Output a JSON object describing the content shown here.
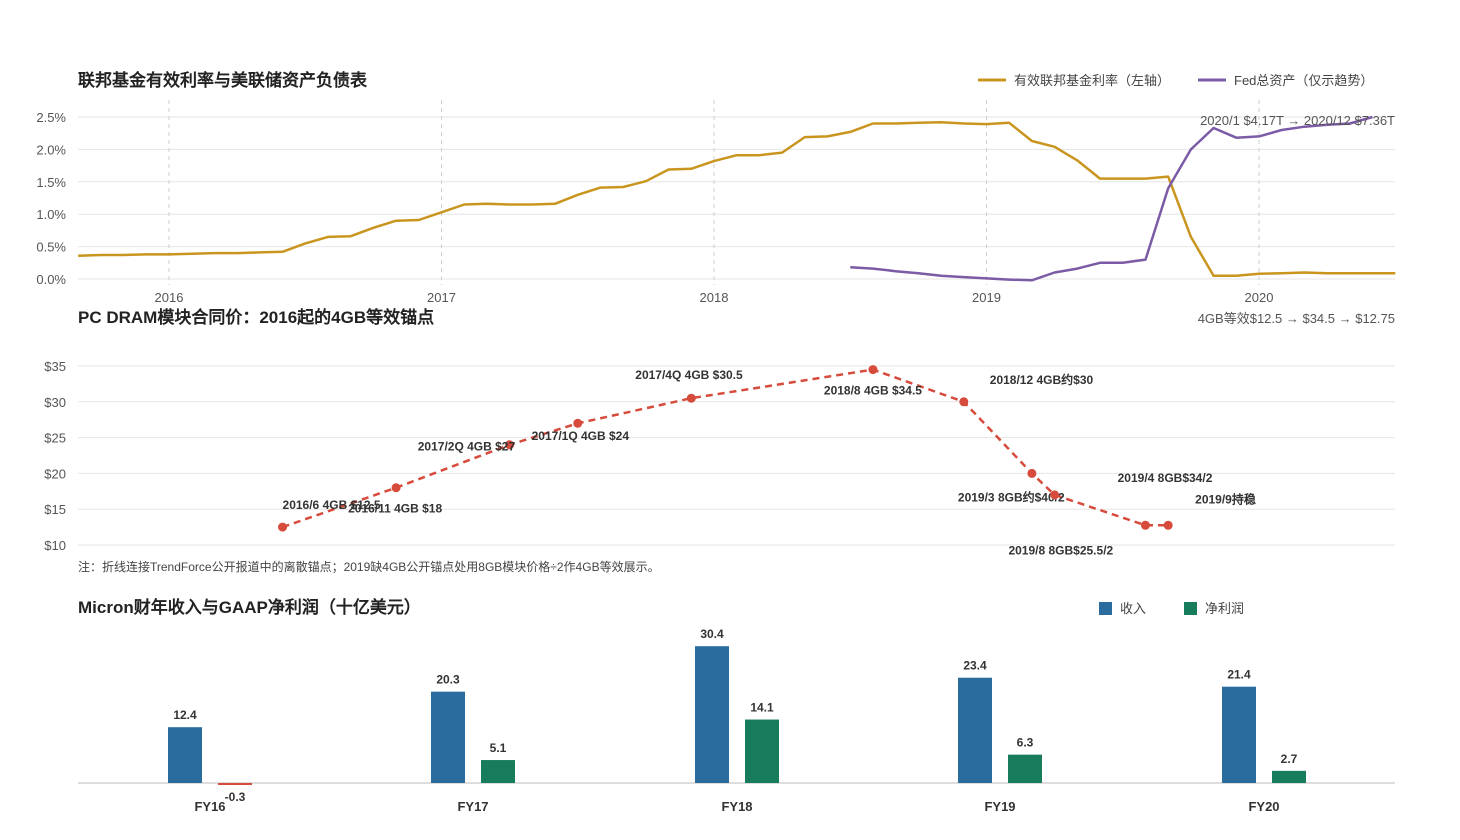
{
  "chart_data": [
    {
      "type": "line",
      "title": "联邦基金有效利率与美联储资产负债表",
      "legend_placement": "top-right",
      "x_ticks": [
        "2016",
        "2017",
        "2018",
        "2019",
        "2020"
      ],
      "y_ticks": [
        "0.0%",
        "0.5%",
        "1.0%",
        "1.5%",
        "2.0%",
        "2.5%"
      ],
      "ylim": [
        0,
        2.5
      ],
      "grid": true,
      "annotation": "2020/1 $4.17T → 2020/12 $7.36T",
      "series": [
        {
          "name": "有效联邦基金利率（左轴）",
          "color": "#c9951e",
          "points": [
            [
              "2015-09",
              0.36
            ],
            [
              "2015-10",
              0.37
            ],
            [
              "2015-11",
              0.37
            ],
            [
              "2015-12",
              0.38
            ],
            [
              "2016-01",
              0.38
            ],
            [
              "2016-02",
              0.39
            ],
            [
              "2016-03",
              0.4
            ],
            [
              "2016-04",
              0.4
            ],
            [
              "2016-05",
              0.41
            ],
            [
              "2016-06",
              0.42
            ],
            [
              "2016-07",
              0.55
            ],
            [
              "2016-08",
              0.65
            ],
            [
              "2016-09",
              0.66
            ],
            [
              "2016-10",
              0.79
            ],
            [
              "2016-11",
              0.9
            ],
            [
              "2016-12",
              0.91
            ],
            [
              "2017-01",
              1.03
            ],
            [
              "2017-02",
              1.15
            ],
            [
              "2017-03",
              1.16
            ],
            [
              "2017-04",
              1.15
            ],
            [
              "2017-05",
              1.15
            ],
            [
              "2017-06",
              1.16
            ],
            [
              "2017-07",
              1.3
            ],
            [
              "2017-08",
              1.41
            ],
            [
              "2017-09",
              1.42
            ],
            [
              "2017-10",
              1.51
            ],
            [
              "2017-11",
              1.69
            ],
            [
              "2017-12",
              1.7
            ],
            [
              "2018-01",
              1.82
            ],
            [
              "2018-02",
              1.91
            ],
            [
              "2018-03",
              1.91
            ],
            [
              "2018-04",
              1.95
            ],
            [
              "2018-05",
              2.19
            ],
            [
              "2018-06",
              2.2
            ],
            [
              "2018-07",
              2.27
            ],
            [
              "2018-08",
              2.4
            ],
            [
              "2018-09",
              2.4
            ],
            [
              "2018-10",
              2.41
            ],
            [
              "2018-11",
              2.42
            ],
            [
              "2018-12",
              2.4
            ],
            [
              "2019-01",
              2.39
            ],
            [
              "2019-02",
              2.41
            ],
            [
              "2019-03",
              2.13
            ],
            [
              "2019-04",
              2.04
            ],
            [
              "2019-05",
              1.83
            ],
            [
              "2019-06",
              1.55
            ],
            [
              "2019-07",
              1.55
            ],
            [
              "2019-08",
              1.55
            ],
            [
              "2019-09",
              1.58
            ],
            [
              "2019-10",
              0.65
            ],
            [
              "2019-11",
              0.05
            ],
            [
              "2019-12",
              0.05
            ],
            [
              "2020-01",
              0.08
            ],
            [
              "2020-02",
              0.09
            ],
            [
              "2020-03",
              0.1
            ],
            [
              "2020-04",
              0.09
            ],
            [
              "2020-05",
              0.09
            ],
            [
              "2020-06",
              0.09
            ],
            [
              "2020-07",
              0.09
            ]
          ]
        },
        {
          "name": "Fed总资产（仅示趋势）",
          "color": "#7b5aa6",
          "points": [
            [
              "2018-07",
              0.18
            ],
            [
              "2018-08",
              0.16
            ],
            [
              "2018-09",
              0.12
            ],
            [
              "2018-10",
              0.09
            ],
            [
              "2018-11",
              0.05
            ],
            [
              "2018-12",
              0.03
            ],
            [
              "2019-01",
              0.01
            ],
            [
              "2019-02",
              -0.01
            ],
            [
              "2019-03",
              -0.02
            ],
            [
              "2019-04",
              0.1
            ],
            [
              "2019-05",
              0.16
            ],
            [
              "2019-06",
              0.25
            ],
            [
              "2019-07",
              0.25
            ],
            [
              "2019-08",
              0.3
            ],
            [
              "2019-09",
              1.4
            ],
            [
              "2019-10",
              2.0
            ],
            [
              "2019-11",
              2.33
            ],
            [
              "2019-12",
              2.18
            ],
            [
              "2020-01",
              2.2
            ],
            [
              "2020-02",
              2.3
            ],
            [
              "2020-03",
              2.35
            ],
            [
              "2020-04",
              2.38
            ],
            [
              "2020-05",
              2.4
            ],
            [
              "2020-06",
              2.5
            ]
          ]
        }
      ]
    },
    {
      "type": "line",
      "title": "PC DRAM模块合同价：2016起的4GB等效锚点",
      "y_ticks": [
        "$10",
        "$15",
        "$20",
        "$25",
        "$30",
        "$35"
      ],
      "ylim": [
        10,
        35
      ],
      "grid": true,
      "subtitle_right": "4GB等效$12.5 → $34.5 → $12.75",
      "note": "注：折线连接TrendForce公开报道中的离散锚点；2019缺4GB公开锚点处用8GB模块价格÷2作4GB等效展示。",
      "points": [
        {
          "t": "2016-06",
          "y": 12.5,
          "label": "2016/6 4GB $12.5"
        },
        {
          "t": "2016-11",
          "y": 18,
          "label": "2016/11 4GB $18"
        },
        {
          "t": "2017-04",
          "y": 24,
          "label": "2017/1Q 4GB $24"
        },
        {
          "t": "2017-07",
          "y": 27,
          "label": "2017/2Q 4GB $27"
        },
        {
          "t": "2017-12",
          "y": 30.5,
          "label": "2017/4Q 4GB $30.5"
        },
        {
          "t": "2018-08",
          "y": 34.5,
          "label": "2018/8 4GB $34.5"
        },
        {
          "t": "2018-12",
          "y": 30,
          "label": "2018/12 4GB约$30"
        },
        {
          "t": "2019-03",
          "y": 20,
          "label": "2019/3 8GB约$40/2"
        },
        {
          "t": "2019-04",
          "y": 17,
          "label": "2019/4 8GB$34/2"
        },
        {
          "t": "2019-08",
          "y": 12.75,
          "label": "2019/8 8GB$25.5/2"
        },
        {
          "t": "2019-09",
          "y": 12.75,
          "label": "2019/9持稳"
        }
      ]
    },
    {
      "type": "bar",
      "title": "Micron财年收入与GAAP净利润（十亿美元）",
      "categories": [
        "FY16",
        "FY17",
        "FY18",
        "FY19",
        "FY20"
      ],
      "legend_placement": "top-right",
      "series": [
        {
          "name": "收入",
          "color": "#2b6c9e",
          "values": [
            12.4,
            20.3,
            30.4,
            23.4,
            21.4
          ]
        },
        {
          "name": "净利润",
          "color": "#167c5c",
          "negative_color": "#d64b3c",
          "values": [
            -0.3,
            5.1,
            14.1,
            6.3,
            2.7
          ]
        }
      ]
    }
  ]
}
